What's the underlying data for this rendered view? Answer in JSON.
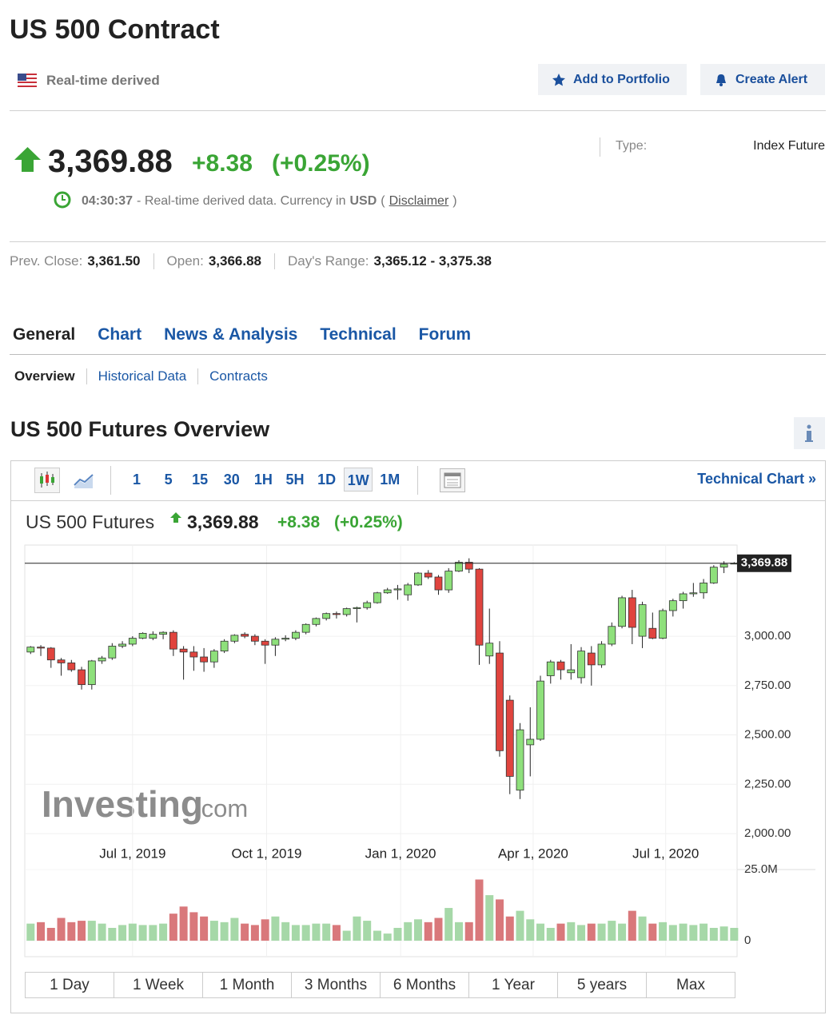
{
  "header": {
    "title": "US 500 Contract",
    "source": "Real-time derived",
    "buttons": [
      "Add to Portfolio",
      "Create Alert"
    ]
  },
  "quote": {
    "price": "3,369.88",
    "change": "+8.38",
    "change_pct": "(+0.25%)",
    "time": "04:30:37",
    "note": "- Real-time derived data. Currency in",
    "currency": "USD",
    "disclaimer_open": "(",
    "disclaimer": "Disclaimer",
    "disclaimer_close": ")",
    "type_label": "Type:",
    "type_value": "Index Future"
  },
  "stats": [
    {
      "label": "Prev. Close:",
      "value": "3,361.50"
    },
    {
      "label": "Open:",
      "value": "3,366.88"
    },
    {
      "label": "Day's Range:",
      "value": "3,365.12 - 3,375.38"
    }
  ],
  "tabs": [
    "General",
    "Chart",
    "News & Analysis",
    "Technical",
    "Forum"
  ],
  "subtabs": [
    "Overview",
    "Historical Data",
    "Contracts"
  ],
  "section_title": "US 500 Futures Overview",
  "toolbar": {
    "intervals": [
      "1",
      "5",
      "15",
      "30",
      "1H",
      "5H",
      "1D",
      "1W",
      "1M"
    ],
    "active_interval": "1W",
    "link": "Technical Chart »"
  },
  "chart_data": {
    "type": "candlestick",
    "title": "US 500 Futures",
    "last": {
      "value": 3369.88,
      "label": "3,369.88"
    },
    "change": "+8.38",
    "change_pct": "(+0.25%)",
    "watermark": [
      "Investing",
      ".com"
    ],
    "x": [
      "2019-04-22",
      "2019-04-29",
      "2019-05-06",
      "2019-05-13",
      "2019-05-20",
      "2019-05-27",
      "2019-06-03",
      "2019-06-10",
      "2019-06-17",
      "2019-06-24",
      "2019-07-01",
      "2019-07-08",
      "2019-07-15",
      "2019-07-22",
      "2019-07-29",
      "2019-08-05",
      "2019-08-12",
      "2019-08-19",
      "2019-08-26",
      "2019-09-02",
      "2019-09-09",
      "2019-09-16",
      "2019-09-23",
      "2019-09-30",
      "2019-10-07",
      "2019-10-14",
      "2019-10-21",
      "2019-10-28",
      "2019-11-04",
      "2019-11-11",
      "2019-11-18",
      "2019-11-25",
      "2019-12-02",
      "2019-12-09",
      "2019-12-16",
      "2019-12-23",
      "2019-12-30",
      "2020-01-06",
      "2020-01-13",
      "2020-01-20",
      "2020-01-27",
      "2020-02-03",
      "2020-02-10",
      "2020-02-17",
      "2020-02-24",
      "2020-03-02",
      "2020-03-09",
      "2020-03-16",
      "2020-03-23",
      "2020-03-30",
      "2020-04-06",
      "2020-04-13",
      "2020-04-20",
      "2020-04-27",
      "2020-05-04",
      "2020-05-11",
      "2020-05-18",
      "2020-05-25",
      "2020-06-01",
      "2020-06-08",
      "2020-06-15",
      "2020-06-22",
      "2020-06-29",
      "2020-07-06",
      "2020-07-13",
      "2020-07-20",
      "2020-07-27",
      "2020-08-03",
      "2020-08-10",
      "2020-08-17"
    ],
    "open": [
      2920,
      2945,
      2940,
      2880,
      2865,
      2830,
      2755,
      2875,
      2890,
      2950,
      2960,
      2990,
      2990,
      3010,
      3020,
      2935,
      2920,
      2895,
      2870,
      2925,
      2975,
      3010,
      3000,
      2975,
      2955,
      2985,
      2990,
      3020,
      3060,
      3090,
      3115,
      3110,
      3140,
      3145,
      3170,
      3220,
      3235,
      3210,
      3260,
      3320,
      3300,
      3235,
      3330,
      3375,
      3340,
      2900,
      2915,
      2676,
      2220,
      2450,
      2478,
      2800,
      2870,
      2815,
      2790,
      2915,
      2855,
      2960,
      3050,
      3195,
      3000,
      3040,
      2990,
      3130,
      3180,
      3215,
      3220,
      3270,
      3350,
      3366.88
    ],
    "high": [
      2950,
      2955,
      2945,
      2890,
      2880,
      2845,
      2880,
      2900,
      2965,
      2975,
      3000,
      3020,
      3025,
      3025,
      3030,
      2950,
      2950,
      2940,
      2935,
      2985,
      3010,
      3020,
      3010,
      2985,
      2995,
      3005,
      3030,
      3065,
      3095,
      3120,
      3125,
      3145,
      3150,
      3180,
      3225,
      3245,
      3260,
      3270,
      3325,
      3335,
      3310,
      3345,
      3385,
      3395,
      3345,
      3140,
      2975,
      2700,
      2560,
      2640,
      2800,
      2880,
      2880,
      2960,
      2945,
      2950,
      2975,
      3070,
      3205,
      3235,
      3175,
      3120,
      3140,
      3190,
      3225,
      3270,
      3290,
      3360,
      3380,
      3375.38
    ],
    "low": [
      2910,
      2900,
      2840,
      2800,
      2820,
      2730,
      2730,
      2860,
      2880,
      2940,
      2950,
      2985,
      2980,
      2985,
      2900,
      2780,
      2825,
      2820,
      2840,
      2915,
      2965,
      2990,
      2955,
      2860,
      2900,
      2975,
      2980,
      3010,
      3050,
      3080,
      3090,
      3100,
      3070,
      3135,
      3165,
      3215,
      3185,
      3180,
      3255,
      3290,
      3210,
      3220,
      3325,
      3320,
      2855,
      2860,
      2390,
      2200,
      2175,
      2290,
      2470,
      2760,
      2780,
      2780,
      2760,
      2750,
      2840,
      2950,
      3040,
      2960,
      2940,
      2985,
      2985,
      3100,
      3140,
      3200,
      3190,
      3265,
      3320,
      3365.12
    ],
    "close": [
      2945,
      2940,
      2880,
      2865,
      2830,
      2755,
      2875,
      2890,
      2950,
      2960,
      2990,
      3015,
      3010,
      3020,
      2935,
      2920,
      2895,
      2870,
      2925,
      2975,
      3005,
      3000,
      2975,
      2955,
      2985,
      2990,
      3020,
      3060,
      3090,
      3115,
      3110,
      3140,
      3145,
      3170,
      3220,
      3235,
      3240,
      3260,
      3320,
      3300,
      3235,
      3330,
      3375,
      3340,
      2955,
      2965,
      2420,
      2290,
      2526,
      2478,
      2773,
      2870,
      2830,
      2830,
      2925,
      2855,
      2960,
      3050,
      3195,
      3045,
      3160,
      2990,
      3130,
      3180,
      3215,
      3220,
      3270,
      3350,
      3365,
      3369.88
    ],
    "xlim": [
      "2019-04-18",
      "2020-08-19"
    ],
    "xticks": [
      {
        "value": "2019-07-01",
        "label": "Jul 1, 2019"
      },
      {
        "value": "2019-10-01",
        "label": "Oct 1, 2019"
      },
      {
        "value": "2020-01-01",
        "label": "Jan 1, 2020"
      },
      {
        "value": "2020-04-01",
        "label": "Apr 1, 2020"
      },
      {
        "value": "2020-07-01",
        "label": "Jul 1, 2020"
      }
    ],
    "ylim": [
      1992,
      3462
    ],
    "yticks": [
      {
        "value": 2000,
        "label": "2,000.00"
      },
      {
        "value": 2250,
        "label": "2,250.00"
      },
      {
        "value": 2500,
        "label": "2,500.00"
      },
      {
        "value": 2750,
        "label": "2,750.00"
      },
      {
        "value": 3000,
        "label": "3,000.00"
      }
    ],
    "grid": true,
    "up_color": "#8ee07b",
    "down_color": "#e0443e",
    "volume": {
      "values": [
        6000000,
        6500000,
        4500000,
        8000000,
        6500000,
        7000000,
        7000000,
        6000000,
        4500000,
        5500000,
        6000000,
        5500000,
        5500000,
        6000000,
        9500000,
        12000000,
        10000000,
        8500000,
        7000000,
        6500000,
        8000000,
        6000000,
        5500000,
        7500000,
        8500000,
        6500000,
        5500000,
        5500000,
        6000000,
        6000000,
        5500000,
        3500000,
        8500000,
        7000000,
        3500000,
        2500000,
        4500000,
        6500000,
        7500000,
        6500000,
        8000000,
        11500000,
        6500000,
        6500000,
        21500000,
        16000000,
        14500000,
        8500000,
        10500000,
        7500000,
        6000000,
        4500000,
        6000000,
        6500000,
        5500000,
        6000000,
        6000000,
        7000000,
        6000000,
        10500000,
        8500000,
        6000000,
        6500000,
        5500000,
        6000000,
        5500000,
        6000000,
        4500000,
        5000000,
        4500000
      ],
      "ylim": [
        0,
        25000000
      ],
      "yticks": [
        {
          "value": 25000000,
          "label": "25.0M"
        },
        0
      ],
      "up_color": "#a6d8a8",
      "down_color": "#d9787b"
    },
    "ranges": [
      "1 Day",
      "1 Week",
      "1 Month",
      "3 Months",
      "6 Months",
      "1 Year",
      "5 years",
      "Max"
    ]
  }
}
